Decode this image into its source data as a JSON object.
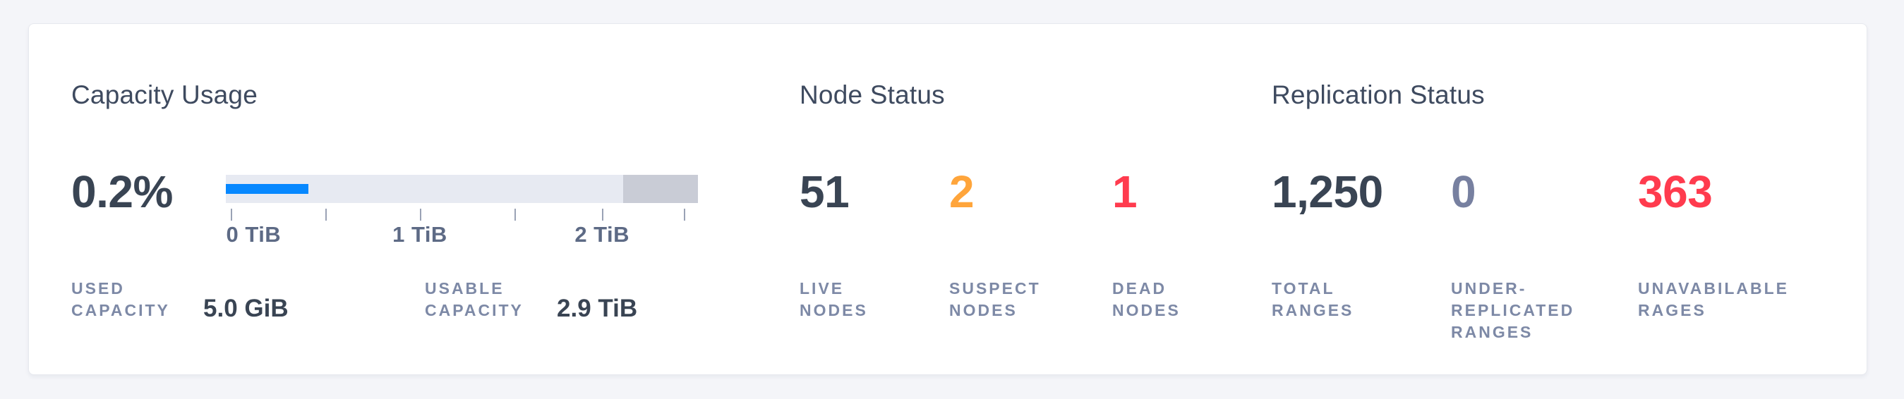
{
  "card": {
    "capacity": {
      "title": "Capacity Usage",
      "percent_used": "0.2%",
      "used": {
        "label": "USED\nCAPACITY",
        "value": "5.0 GiB"
      },
      "usable": {
        "label": "USABLE\nCAPACITY",
        "value": "2.9 TiB"
      }
    },
    "node_status": {
      "title": "Node Status",
      "stats": [
        {
          "label": "LIVE\nNODES",
          "value": "51",
          "color": "#394453"
        },
        {
          "label": "SUSPECT\nNODES",
          "value": "2",
          "color": "#ffa53b"
        },
        {
          "label": "DEAD\nNODES",
          "value": "1",
          "color": "#ff3b4e"
        }
      ]
    },
    "replication_status": {
      "title": "Replication Status",
      "stats": [
        {
          "label": "TOTAL\nRANGES",
          "value": "1,250",
          "color": "#394453"
        },
        {
          "label": "UNDER-\nREPLICATED\nRANGES",
          "value": "0",
          "color": "#7780a0"
        },
        {
          "label": "UNAVABILABLE\nRAGES",
          "value": "363",
          "color": "#ff3b4e"
        }
      ]
    },
    "colors": {
      "title_text": "#3e4a5f",
      "label_text": "#7d89a6",
      "tick_label_text": "#5d6a85",
      "card_background": "#ffffff",
      "page_background": "#f4f5f9"
    }
  },
  "chart_data": {
    "type": "linear-gauge",
    "title": "Capacity Usage",
    "units": "TiB",
    "percent_used": "0.2%",
    "used_capacity": "5.0 GiB",
    "usable_capacity": "2.9 TiB",
    "track_color": "#e7eaf2",
    "used_bar": {
      "width_pct": 17.5,
      "color": "#0788ff"
    },
    "reserved_bar": {
      "width_pct": 15.8,
      "color": "#c9ccd6"
    },
    "axis_ticks": [
      {
        "pos_pct": 1.0,
        "label": "0 TiB"
      },
      {
        "pos_pct": 21.1,
        "label": ""
      },
      {
        "pos_pct": 41.1,
        "label": "1 TiB"
      },
      {
        "pos_pct": 61.1,
        "label": ""
      },
      {
        "pos_pct": 79.7,
        "label": "2 TiB"
      },
      {
        "pos_pct": 97.0,
        "label": ""
      }
    ]
  }
}
